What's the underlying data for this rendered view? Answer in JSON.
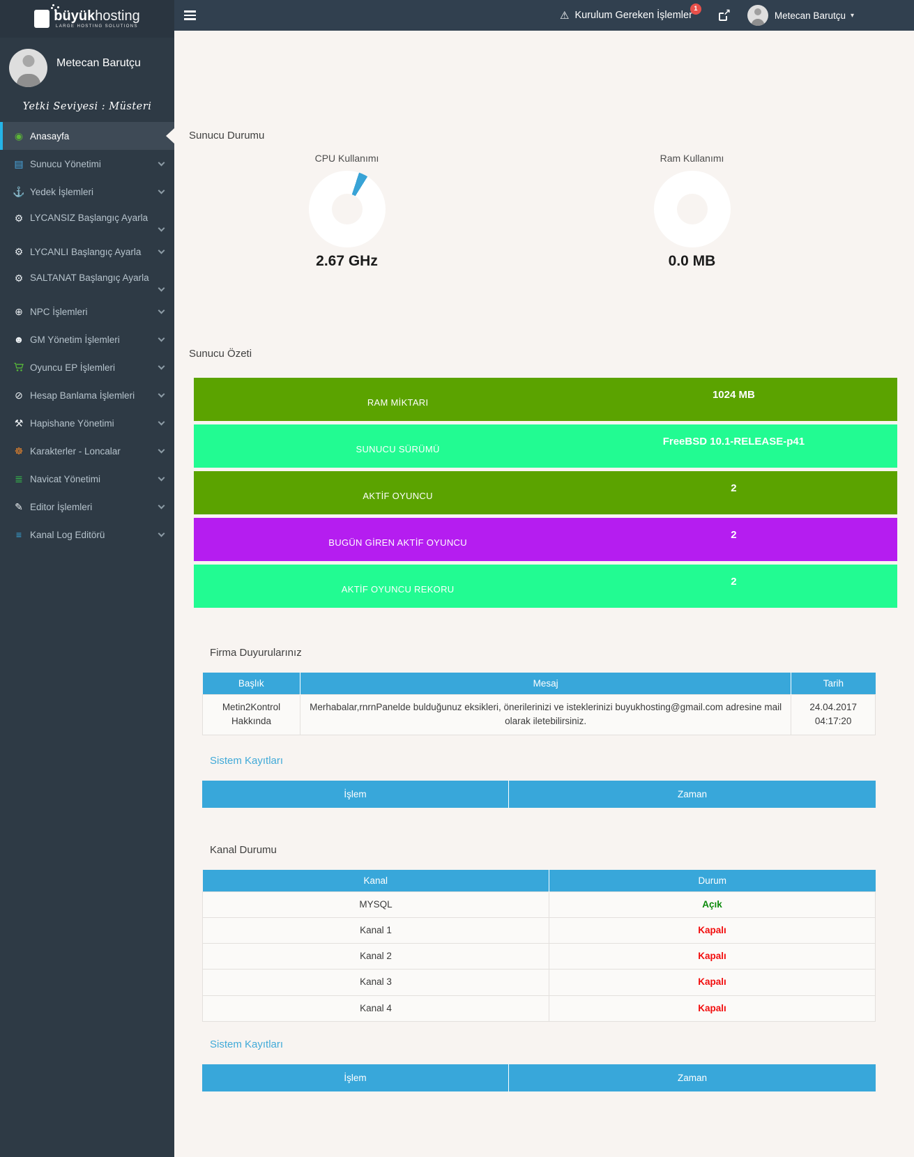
{
  "brand": {
    "bold": "büyük",
    "light": "hosting",
    "tagline": "LARGE HOSTING SOLUTIONS"
  },
  "navbar": {
    "alert_label": "Kurulum Gereken İşlemler",
    "alert_count": "1",
    "user_name": "Metecan Barutçu"
  },
  "user_panel": {
    "name": "Metecan Barutçu",
    "role": "Yetki Seviyesi : Müsteri"
  },
  "sidebar": {
    "items": [
      {
        "label": "Anasayfa",
        "icon": "dashboard-icon",
        "icon_color": "#5cb537",
        "active": true,
        "has_submenu": false
      },
      {
        "label": "Sunucu Yönetimi",
        "icon": "newspaper-icon",
        "icon_color": "#4aa7e0",
        "active": false,
        "has_submenu": true
      },
      {
        "label": "Yedek İşlemleri",
        "icon": "anchor-icon",
        "icon_color": "#8496a5",
        "active": false,
        "has_submenu": true
      },
      {
        "label": "LYCANSIZ Başlangıç Ayarla",
        "icon": "gear-icon",
        "icon_color": "#e9eef2",
        "active": false,
        "has_submenu": true
      },
      {
        "label": "LYCANLI Başlangıç Ayarla",
        "icon": "gear-icon",
        "icon_color": "#e9eef2",
        "active": false,
        "has_submenu": true
      },
      {
        "label": "SALTANAT Başlangıç Ayarla",
        "icon": "gear-icon",
        "icon_color": "#e9eef2",
        "active": false,
        "has_submenu": true
      },
      {
        "label": "NPC İşlemleri",
        "icon": "plus-circle-icon",
        "icon_color": "#eef2f5",
        "active": false,
        "has_submenu": true
      },
      {
        "label": "GM Yönetim İşlemleri",
        "icon": "user-icon",
        "icon_color": "#eef2f5",
        "active": false,
        "has_submenu": true
      },
      {
        "label": "Oyuncu EP İşlemleri",
        "icon": "cart-icon",
        "icon_color": "#56b53a",
        "active": false,
        "has_submenu": true
      },
      {
        "label": "Hesap Banlama İşlemleri",
        "icon": "ban-icon",
        "icon_color": "#eef2f5",
        "active": false,
        "has_submenu": true
      },
      {
        "label": "Hapishane Yönetimi",
        "icon": "gavel-icon",
        "icon_color": "#eef2f5",
        "active": false,
        "has_submenu": true
      },
      {
        "label": "Karakterler - Loncalar",
        "icon": "life-ring-icon",
        "icon_color": "#e8842c",
        "active": false,
        "has_submenu": true
      },
      {
        "label": "Navicat Yönetimi",
        "icon": "database-icon",
        "icon_color": "#35c04a",
        "active": false,
        "has_submenu": true
      },
      {
        "label": "Editor İşlemleri",
        "icon": "pencil-icon",
        "icon_color": "#eef2f5",
        "active": false,
        "has_submenu": true
      },
      {
        "label": "Kanal Log Editörü",
        "icon": "lines-icon",
        "icon_color": "#38a7da",
        "active": false,
        "has_submenu": true
      }
    ]
  },
  "main": {
    "server_status": {
      "title": "Sunucu Durumu",
      "gauges": [
        {
          "id": "cpu",
          "label": "CPU Kullanımı",
          "value": "2.67 GHz"
        },
        {
          "id": "ram",
          "label": "Ram Kullanımı",
          "value": "0.0 MB"
        }
      ]
    },
    "server_summary": {
      "title": "Sunucu Özeti",
      "rows": [
        {
          "label": "RAM MİKTARI",
          "value": "1024 MB",
          "color": "#5ba300"
        },
        {
          "label": "SUNUCU SÜRÜMÜ",
          "value": "FreeBSD 10.1-RELEASE-p41",
          "color": "#22fb92"
        },
        {
          "label": "AKTİF OYUNCU",
          "value": "2",
          "color": "#5ba300"
        },
        {
          "label": "BUGÜN GİREN AKTİF OYUNCU",
          "value": "2",
          "color": "#b51df0"
        },
        {
          "label": "AKTİF OYUNCU REKORU",
          "value": "2",
          "color": "#22fb92"
        }
      ]
    },
    "announcements": {
      "title": "Firma Duyurularınız",
      "headers": [
        "Başlık",
        "Mesaj",
        "Tarih"
      ],
      "rows": [
        {
          "title": "Metin2Kontrol Hakkında",
          "message": "Merhabalar,rnrnPanelde bulduğunuz eksikleri, önerilerinizi ve isteklerinizi buyukhosting@gmail.com adresine mail olarak iletebilirsiniz.",
          "date": "24.04.2017 04:17:20"
        }
      ]
    },
    "system_logs": {
      "title": "Sistem Kayıtları",
      "headers": [
        "İşlem",
        "Zaman"
      ],
      "rows": []
    },
    "channel_status": {
      "title": "Kanal Durumu",
      "headers": [
        "Kanal",
        "Durum"
      ],
      "rows": [
        {
          "name": "MYSQL",
          "status": "Açık",
          "status_color": "#0b8a0b"
        },
        {
          "name": "Kanal 1",
          "status": "Kapalı",
          "status_color": "#f20d0d"
        },
        {
          "name": "Kanal 2",
          "status": "Kapalı",
          "status_color": "#f20d0d"
        },
        {
          "name": "Kanal 3",
          "status": "Kapalı",
          "status_color": "#f20d0d"
        },
        {
          "name": "Kanal 4",
          "status": "Kapalı",
          "status_color": "#f20d0d"
        }
      ]
    }
  },
  "colors": {
    "table_header": "#38a7da",
    "link": "#41aad8",
    "accent": "#25b4e8",
    "badge": "#e8504a",
    "bar_olive": "#5ba300",
    "bar_spring": "#22fb92",
    "bar_purple": "#b51df0",
    "status_open": "#0b8a0b",
    "status_closed": "#f20d0d"
  }
}
